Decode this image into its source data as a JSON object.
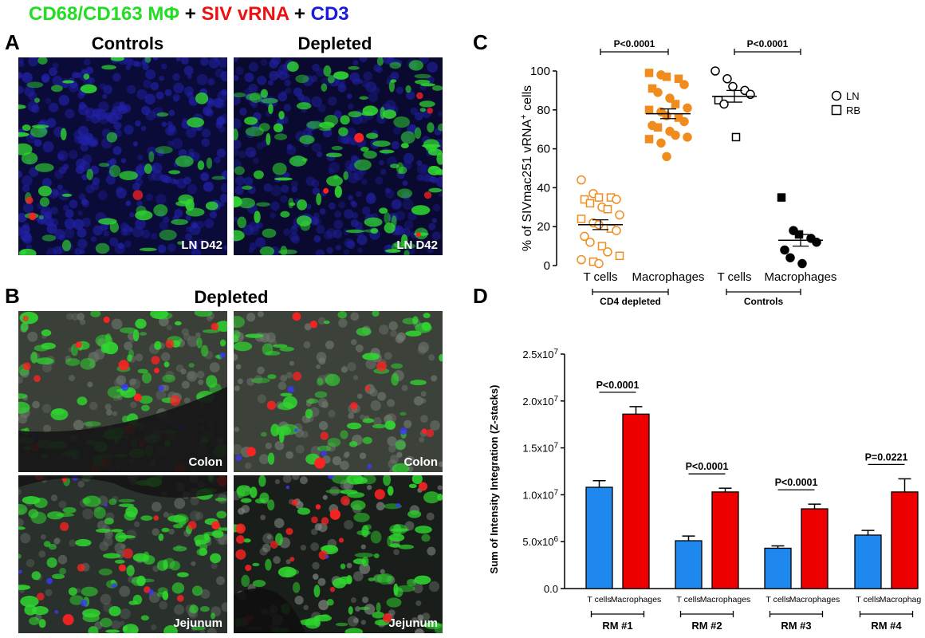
{
  "stain_title": {
    "part1": "CD68/CD163 MΦ",
    "sep1": " + ",
    "part2": "SIV vRNA",
    "sep2": " + ",
    "part3": "CD3",
    "colors": {
      "green": "#22dd22",
      "red": "#ee1111",
      "blue": "#1a1add"
    }
  },
  "panel_a": {
    "letter": "A",
    "col_left": "Controls",
    "col_right": "Depleted",
    "caption_left": "LN D42",
    "caption_right": "LN D42"
  },
  "panel_b": {
    "letter": "B",
    "title": "Depleted",
    "captions": [
      "Colon",
      "Colon",
      "Jejunum",
      "Jejunum"
    ]
  },
  "chart_data": [
    {
      "panel": "C",
      "type": "scatter",
      "ylabel_main": "% of SIVmac251 vRNA",
      "ylabel_sup": "+",
      "ylabel_tail": " cells",
      "ylim": [
        0,
        100
      ],
      "yticks": [
        "0",
        "20",
        "40",
        "60",
        "80",
        "100"
      ],
      "categories": [
        "T cells",
        "Macrophages",
        "T cells",
        "Macrophages"
      ],
      "groups": [
        {
          "label": "CD4 depleted",
          "span": [
            0,
            1
          ]
        },
        {
          "label": "Controls",
          "span": [
            2,
            3
          ]
        }
      ],
      "significance": [
        {
          "label": "P<0.0001",
          "between": [
            0,
            1
          ]
        },
        {
          "label": "P<0.0001",
          "between": [
            2,
            3
          ]
        }
      ],
      "legend": [
        {
          "symbol": "circle",
          "label": "LN"
        },
        {
          "symbol": "square",
          "label": "RB"
        }
      ],
      "legend_position": "top-right",
      "series": [
        {
          "category": 0,
          "color": "#f08c1e",
          "filled": false,
          "mean": 21,
          "sem": 2.5,
          "points": [
            {
              "y": 44,
              "s": "c"
            },
            {
              "y": 37,
              "s": "c"
            },
            {
              "y": 35,
              "s": "s"
            },
            {
              "y": 35,
              "s": "s"
            },
            {
              "y": 34,
              "s": "c"
            },
            {
              "y": 34,
              "s": "s"
            },
            {
              "y": 32,
              "s": "s"
            },
            {
              "y": 30,
              "s": "c"
            },
            {
              "y": 29,
              "s": "s"
            },
            {
              "y": 26,
              "s": "c"
            },
            {
              "y": 24,
              "s": "s"
            },
            {
              "y": 22,
              "s": "c"
            },
            {
              "y": 21,
              "s": "c"
            },
            {
              "y": 19,
              "s": "s"
            },
            {
              "y": 18,
              "s": "c"
            },
            {
              "y": 15,
              "s": "c"
            },
            {
              "y": 12,
              "s": "c"
            },
            {
              "y": 10,
              "s": "s"
            },
            {
              "y": 7,
              "s": "c"
            },
            {
              "y": 5,
              "s": "s"
            },
            {
              "y": 3,
              "s": "c"
            },
            {
              "y": 2,
              "s": "s"
            },
            {
              "y": 1,
              "s": "c"
            }
          ]
        },
        {
          "category": 1,
          "color": "#f08c1e",
          "filled": true,
          "mean": 78,
          "sem": 2.5,
          "points": [
            {
              "y": 99,
              "s": "s"
            },
            {
              "y": 98,
              "s": "c"
            },
            {
              "y": 97,
              "s": "s"
            },
            {
              "y": 96,
              "s": "s"
            },
            {
              "y": 93,
              "s": "c"
            },
            {
              "y": 91,
              "s": "s"
            },
            {
              "y": 89,
              "s": "c"
            },
            {
              "y": 86,
              "s": "c"
            },
            {
              "y": 83,
              "s": "s"
            },
            {
              "y": 81,
              "s": "c"
            },
            {
              "y": 80,
              "s": "s"
            },
            {
              "y": 79,
              "s": "c"
            },
            {
              "y": 77,
              "s": "c"
            },
            {
              "y": 76,
              "s": "s"
            },
            {
              "y": 74,
              "s": "c"
            },
            {
              "y": 72,
              "s": "c"
            },
            {
              "y": 71,
              "s": "s"
            },
            {
              "y": 69,
              "s": "c"
            },
            {
              "y": 67,
              "s": "c"
            },
            {
              "y": 66,
              "s": "c"
            },
            {
              "y": 65,
              "s": "s"
            },
            {
              "y": 63,
              "s": "c"
            },
            {
              "y": 56,
              "s": "c"
            }
          ]
        },
        {
          "category": 2,
          "color": "#000000",
          "filled": false,
          "mean": 87,
          "sem": 3,
          "points": [
            {
              "y": 100,
              "s": "c"
            },
            {
              "y": 96,
              "s": "c"
            },
            {
              "y": 92,
              "s": "c"
            },
            {
              "y": 90,
              "s": "c"
            },
            {
              "y": 88,
              "s": "c"
            },
            {
              "y": 85,
              "s": "s"
            },
            {
              "y": 83,
              "s": "c"
            },
            {
              "y": 66,
              "s": "s"
            }
          ]
        },
        {
          "category": 3,
          "color": "#000000",
          "filled": true,
          "mean": 13,
          "sem": 3,
          "points": [
            {
              "y": 35,
              "s": "s"
            },
            {
              "y": 18,
              "s": "c"
            },
            {
              "y": 16,
              "s": "s"
            },
            {
              "y": 14,
              "s": "c"
            },
            {
              "y": 12,
              "s": "c"
            },
            {
              "y": 8,
              "s": "c"
            },
            {
              "y": 4,
              "s": "c"
            },
            {
              "y": 1,
              "s": "c"
            }
          ]
        }
      ]
    },
    {
      "panel": "D",
      "type": "bar",
      "ylabel": "Sum of Intensity Integration (Z-stacks)",
      "ylim": [
        0,
        25000000
      ],
      "yticks": [
        {
          "v": 0,
          "base": "0.0",
          "exp": ""
        },
        {
          "v": 5000000,
          "base": "5.0x10",
          "exp": "6"
        },
        {
          "v": 10000000,
          "base": "1.0x10",
          "exp": "7"
        },
        {
          "v": 15000000,
          "base": "1.5x10",
          "exp": "7"
        },
        {
          "v": 20000000,
          "base": "2.0x10",
          "exp": "7"
        },
        {
          "v": 25000000,
          "base": "2.5x10",
          "exp": "7"
        }
      ],
      "categories": [
        "RM #1",
        "RM #2",
        "RM #3",
        "RM #4"
      ],
      "bar_labels": [
        "T cells",
        "Macrophages"
      ],
      "series": [
        {
          "name": "T cells",
          "color": "#1e88ee",
          "values": [
            10800000,
            5100000,
            4300000,
            5700000
          ],
          "errors": [
            700000,
            500000,
            250000,
            500000
          ]
        },
        {
          "name": "Macrophages",
          "color": "#ee0000",
          "values": [
            18600000,
            10300000,
            8500000,
            10300000
          ],
          "errors": [
            800000,
            400000,
            500000,
            1400000
          ]
        }
      ],
      "significance": [
        "P<0.0001",
        "P<0.0001",
        "P<0.0001",
        "P=0.0221"
      ]
    }
  ]
}
